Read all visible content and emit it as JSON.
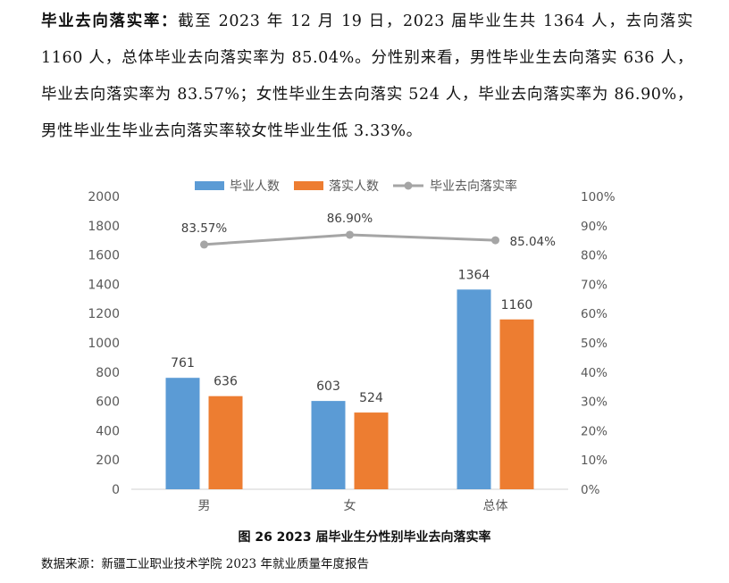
{
  "paragraph": {
    "lead": "毕业去向落实率：",
    "body": "截至 2023 年 12 月 19 日，2023 届毕业生共 1364 人，去向落实 1160 人，总体毕业去向落实率为 85.04%。分性别来看，男性毕业生去向落实 636 人，毕业去向落实率为 83.57%；女性毕业生去向落实 524 人，毕业去向落实率为 86.90%，男性毕业生毕业去向落实率较女性毕业生低 3.33%。"
  },
  "chart_data": {
    "type": "bar",
    "title": "",
    "categories": [
      "男",
      "女",
      "总体"
    ],
    "series": [
      {
        "name": "毕业人数",
        "kind": "bar",
        "axis": "left",
        "color": "#5b9bd5",
        "values": [
          761,
          603,
          1364
        ],
        "labels": [
          "761",
          "603",
          "1364"
        ]
      },
      {
        "name": "落实人数",
        "kind": "bar",
        "axis": "left",
        "color": "#ed7d31",
        "values": [
          636,
          524,
          1160
        ],
        "labels": [
          "636",
          "524",
          "1160"
        ]
      },
      {
        "name": "毕业去向落实率",
        "kind": "line",
        "axis": "right",
        "color": "#a5a5a5",
        "values": [
          83.57,
          86.9,
          85.04
        ],
        "labels": [
          "83.57%",
          "86.90%",
          "85.04%"
        ]
      }
    ],
    "ylim": [
      0,
      2000
    ],
    "yticks": [
      "0",
      "200",
      "400",
      "600",
      "800",
      "1000",
      "1200",
      "1400",
      "1600",
      "1800",
      "2000"
    ],
    "y2lim": [
      0,
      100
    ],
    "y2ticks": [
      "0%",
      "10%",
      "20%",
      "30%",
      "40%",
      "50%",
      "60%",
      "70%",
      "80%",
      "90%",
      "100%"
    ],
    "grid": false,
    "legend": "top"
  },
  "caption": "图 26 2023 届毕业生分性别毕业去向落实率",
  "source": "数据来源：新疆工业职业技术学院 2023 年就业质量年度报告"
}
